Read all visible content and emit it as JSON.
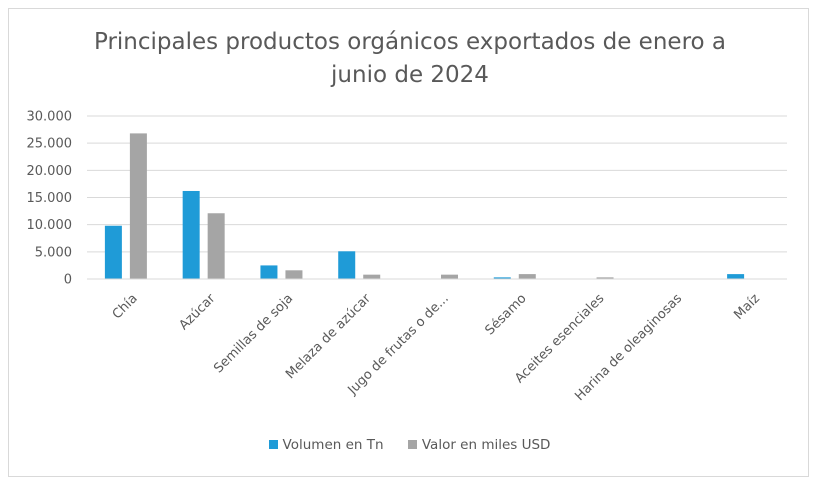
{
  "chart_data": {
    "type": "bar",
    "title_lines": [
      "Principales productos orgánicos exportados de enero a",
      "junio de 2024"
    ],
    "categories": [
      "Chía",
      "Azúcar",
      "Semillas de soja",
      "Melaza de azúcar",
      "Jugo de frutas o de...",
      "Sésamo",
      "Aceites esenciales",
      "Harina de oleaginosas",
      "Maíz"
    ],
    "series": [
      {
        "name": "Volumen en Tn",
        "color": "#1f9bd7",
        "values": [
          9800,
          16200,
          2500,
          5100,
          0,
          300,
          0,
          0,
          900
        ]
      },
      {
        "name": "Valor en miles USD",
        "color": "#a5a5a5",
        "values": [
          26800,
          12100,
          1600,
          800,
          800,
          900,
          300,
          0,
          0
        ]
      }
    ],
    "ylim": [
      0,
      30000
    ],
    "yticks": [
      {
        "value": 0,
        "label": "0"
      },
      {
        "value": 5000,
        "label": "5.000"
      },
      {
        "value": 10000,
        "label": "10.000"
      },
      {
        "value": 15000,
        "label": "15.000"
      },
      {
        "value": 20000,
        "label": "20.000"
      },
      {
        "value": 25000,
        "label": "25.000"
      },
      {
        "value": 30000,
        "label": "30.000"
      }
    ],
    "grid": true,
    "legend_position": "bottom"
  }
}
